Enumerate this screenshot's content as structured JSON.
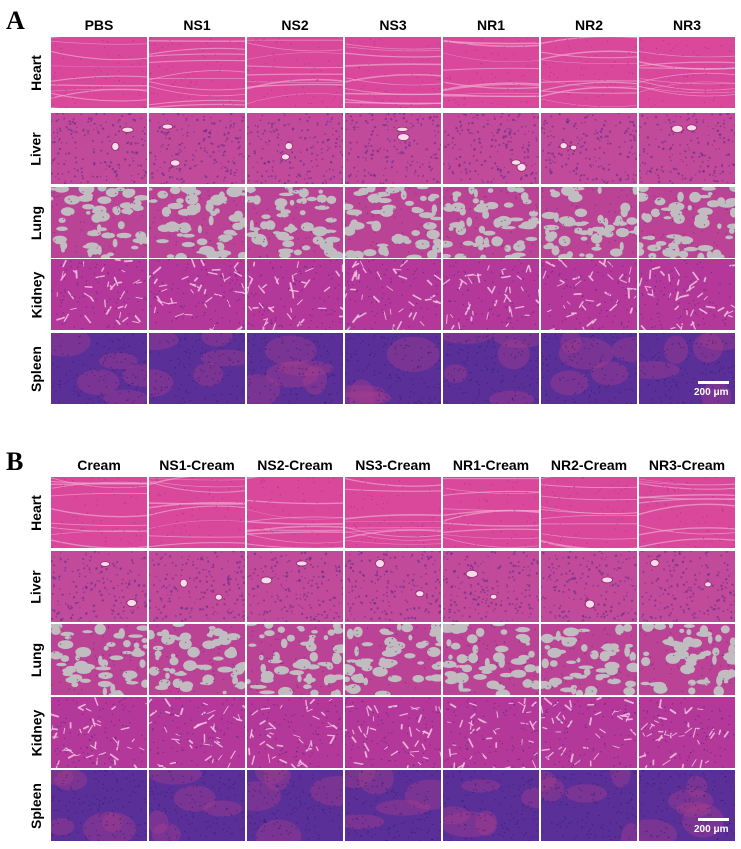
{
  "panel_a": {
    "letter": "A",
    "columns": [
      "PBS",
      "NS1",
      "NS2",
      "NS3",
      "NR1",
      "NR2",
      "NR3"
    ],
    "rows": [
      "Heart",
      "Liver",
      "Lung",
      "Kidney",
      "Spleen"
    ],
    "scale_bar": "200 μm"
  },
  "panel_b": {
    "letter": "B",
    "columns": [
      "Cream",
      "NS1-Cream",
      "NS2-Cream",
      "NS3-Cream",
      "NR1-Cream",
      "NR2-Cream",
      "NR3-Cream"
    ],
    "rows": [
      "Heart",
      "Liver",
      "Lung",
      "Kidney",
      "Spleen"
    ],
    "scale_bar": "200 μm"
  },
  "tissue_colors": {
    "heart": "#d9489b",
    "liver": "#c14a9a",
    "lung_background": "#c0bcbf",
    "lung_tissue": "#bb4395",
    "kidney": "#b4389a",
    "spleen": "#5a2f98"
  }
}
